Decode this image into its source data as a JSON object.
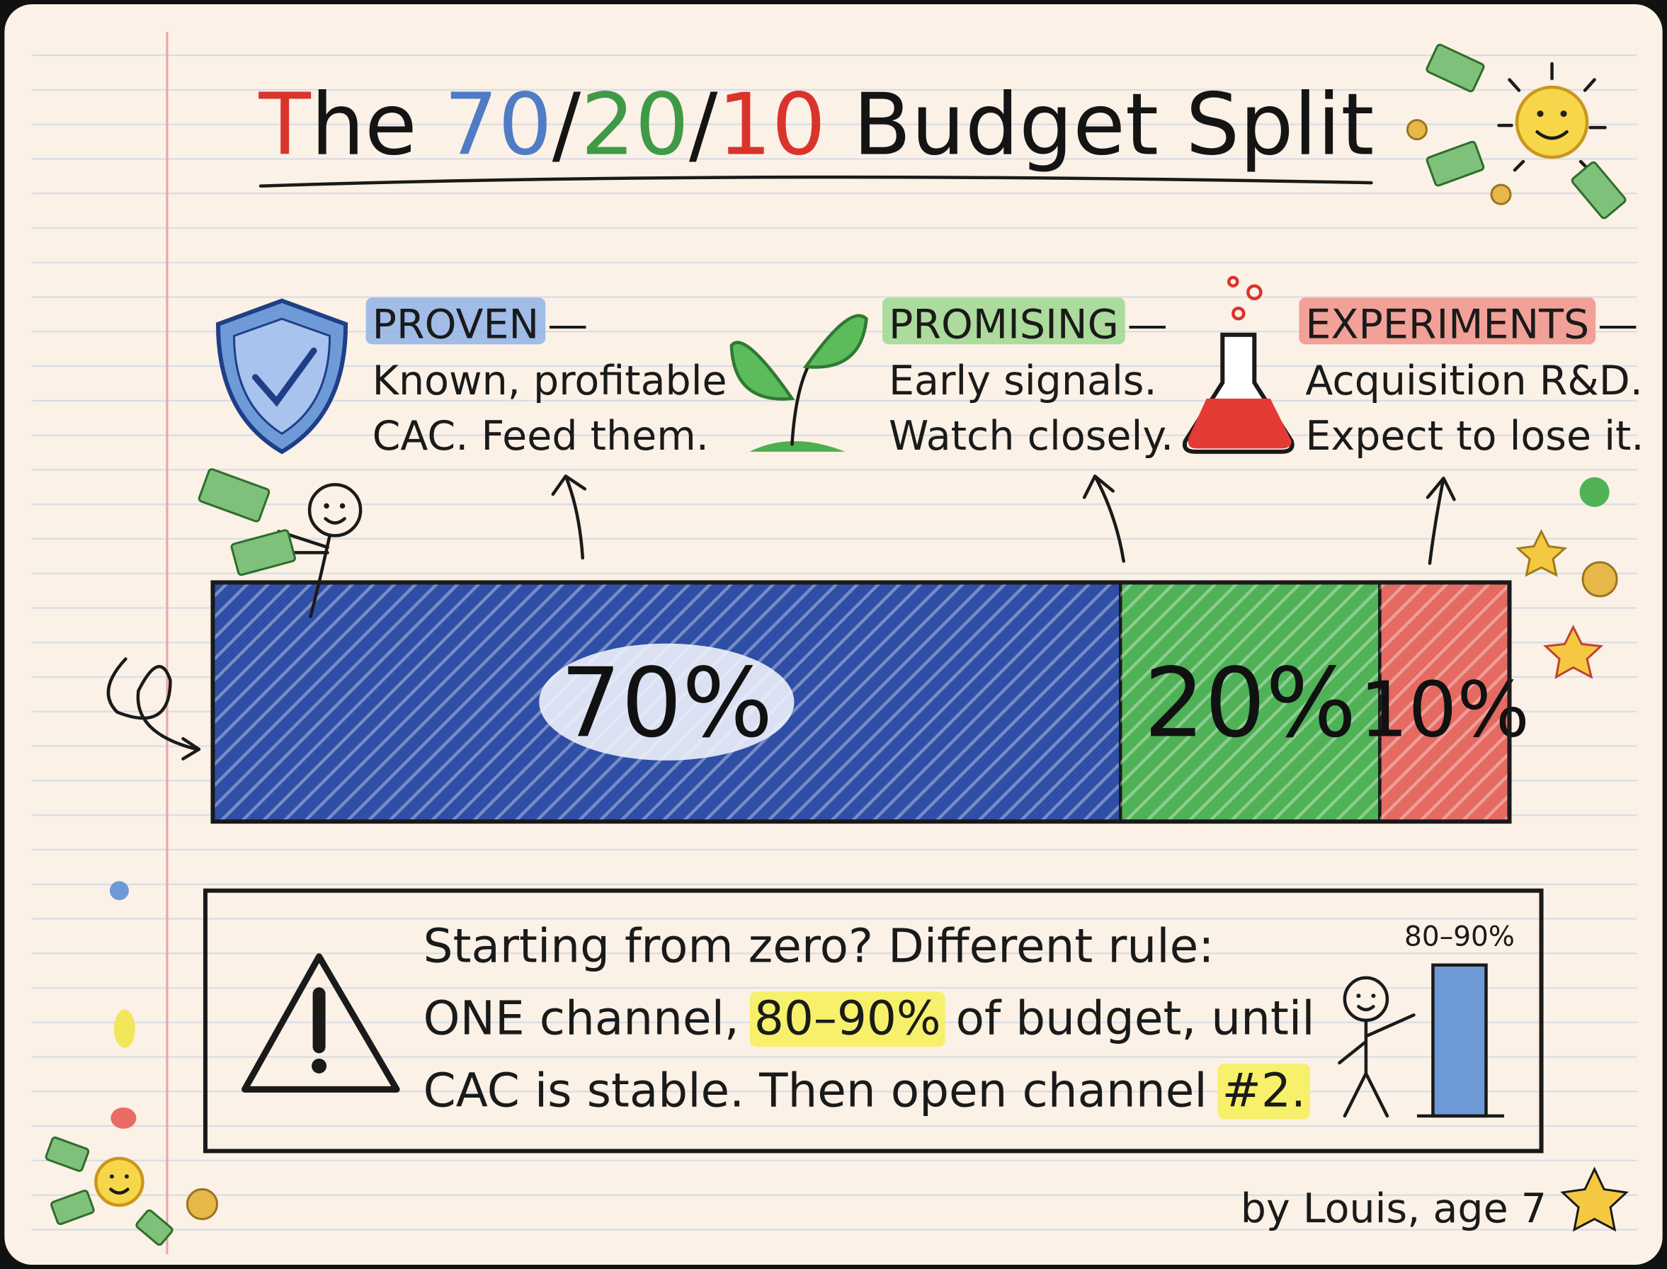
{
  "title_parts": [
    {
      "text": "T",
      "color": "#d9342b"
    },
    {
      "text": "he ",
      "color": "#141414"
    },
    {
      "text": "70",
      "color": "#4f7cc4"
    },
    {
      "text": "/",
      "color": "#141414"
    },
    {
      "text": "20",
      "color": "#3f9a45"
    },
    {
      "text": "/",
      "color": "#141414"
    },
    {
      "text": "10",
      "color": "#d9342b"
    },
    {
      "text": " Budget Split",
      "color": "#141414"
    }
  ],
  "categories": [
    {
      "heading": "PROVEN",
      "dash": "—",
      "lines": [
        "Known, profitable",
        "CAC. Feed them."
      ],
      "highlight": "#8fb3e6",
      "fill": "#2f4ea6",
      "value": 70,
      "label": "70%"
    },
    {
      "heading": "PROMISING",
      "dash": "—",
      "lines": [
        "Early signals.",
        "Watch closely."
      ],
      "highlight": "#9ed88f",
      "fill": "#4fb256",
      "value": 20,
      "label": "20%"
    },
    {
      "heading": "EXPERIMENTS",
      "dash": "—",
      "lines": [
        "Acquisition R&D.",
        "Expect to lose it."
      ],
      "highlight": "#f0938a",
      "fill": "#e56a62",
      "value": 10,
      "label": "10%"
    }
  ],
  "note": {
    "lines": [
      [
        {
          "text": "Starting from zero? Different rule:"
        }
      ],
      [
        {
          "text": "ONE channel, "
        },
        {
          "text": "80–90%",
          "highlight": true
        },
        {
          "text": " of budget, until"
        }
      ],
      [
        {
          "text": "CAC is stable. Then open channel "
        },
        {
          "text": "#2.",
          "highlight": true
        }
      ]
    ],
    "highlight_color": "#f7f06a",
    "mini_label": "80–90%"
  },
  "footer": "by Louis, age 7"
}
